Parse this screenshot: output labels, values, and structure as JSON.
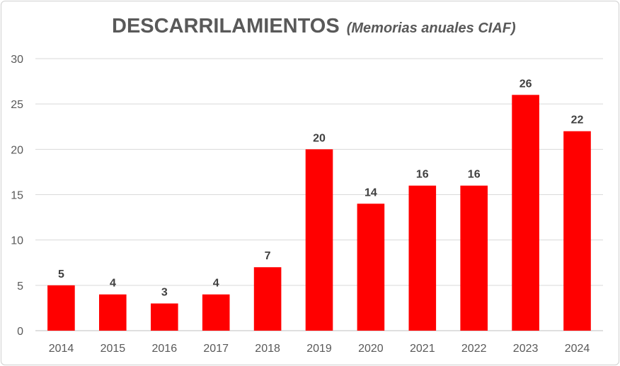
{
  "chart_data": {
    "type": "bar",
    "title": "DESCARRILAMIENTOS",
    "subtitle": "(Memorias anuales CIAF)",
    "categories": [
      "2014",
      "2015",
      "2016",
      "2017",
      "2018",
      "2019",
      "2020",
      "2021",
      "2022",
      "2023",
      "2024"
    ],
    "values": [
      5,
      4,
      3,
      4,
      7,
      20,
      14,
      16,
      16,
      26,
      22
    ],
    "ylim": [
      0,
      30
    ],
    "yticks": [
      0,
      5,
      10,
      15,
      20,
      25,
      30
    ],
    "xlabel": "",
    "ylabel": "",
    "grid": true,
    "bar_color": "#ff0000"
  }
}
